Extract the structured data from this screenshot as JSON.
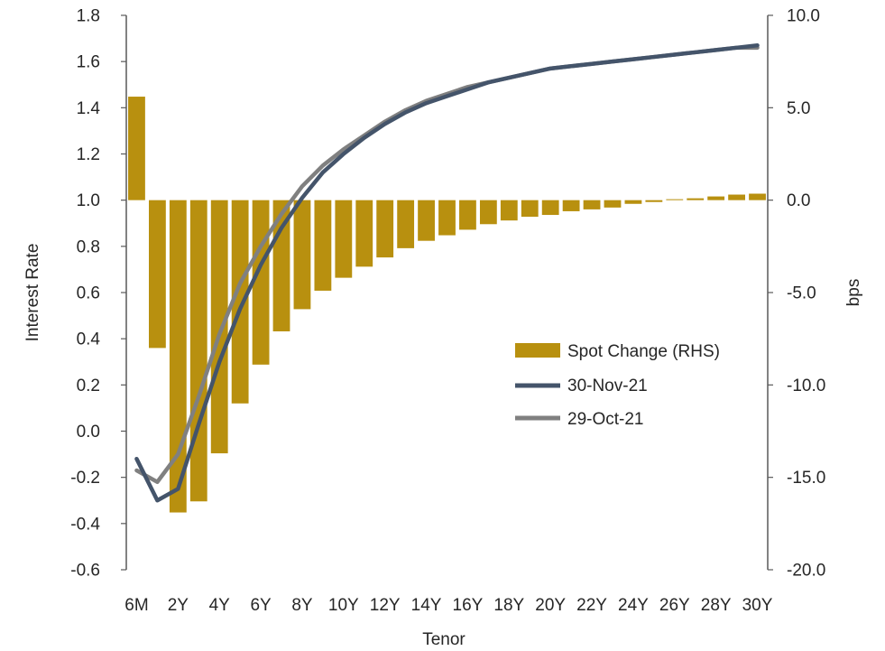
{
  "chart_data": {
    "type": "bar+line",
    "title": "",
    "xlabel": "Tenor",
    "ylabel_left": "Interest Rate",
    "ylabel_right": "bps",
    "ylim_left": [
      -0.6,
      1.8
    ],
    "ylim_right": [
      -20.0,
      10.0
    ],
    "yticks_left": [
      "1.8",
      "1.6",
      "1.4",
      "1.2",
      "1.0",
      "0.8",
      "0.6",
      "0.4",
      "0.2",
      "0.0",
      "-0.2",
      "-0.4",
      "-0.6"
    ],
    "yticks_right": [
      "10.0",
      "5.0",
      "0.0",
      "-5.0",
      "-10.0",
      "-15.0",
      "-20.0"
    ],
    "x_tick_labels": [
      "6M",
      "2Y",
      "4Y",
      "6Y",
      "8Y",
      "10Y",
      "12Y",
      "14Y",
      "16Y",
      "18Y",
      "20Y",
      "22Y",
      "24Y",
      "26Y",
      "28Y",
      "30Y"
    ],
    "categories": [
      "6M",
      "1Y",
      "2Y",
      "3Y",
      "4Y",
      "5Y",
      "6Y",
      "7Y",
      "8Y",
      "9Y",
      "10Y",
      "11Y",
      "12Y",
      "13Y",
      "14Y",
      "15Y",
      "16Y",
      "17Y",
      "18Y",
      "19Y",
      "20Y",
      "21Y",
      "22Y",
      "23Y",
      "24Y",
      "25Y",
      "26Y",
      "27Y",
      "28Y",
      "29Y",
      "30Y"
    ],
    "legend_position": "center-right",
    "grid": false,
    "series": [
      {
        "name": "Spot Change (RHS)",
        "type": "bar",
        "axis": "right",
        "color": "#B8900F",
        "values": [
          5.6,
          -8.0,
          -16.9,
          -16.3,
          -13.7,
          -11.0,
          -8.9,
          -7.1,
          -5.9,
          -4.9,
          -4.2,
          -3.6,
          -3.1,
          -2.6,
          -2.2,
          -1.9,
          -1.6,
          -1.3,
          -1.1,
          -0.9,
          -0.8,
          -0.6,
          -0.5,
          -0.4,
          -0.2,
          -0.1,
          0.05,
          0.1,
          0.2,
          0.3,
          0.35
        ]
      },
      {
        "name": "30-Nov-21",
        "type": "line",
        "axis": "left",
        "color": "#44546A",
        "values": [
          -0.12,
          -0.3,
          -0.25,
          0.03,
          0.3,
          0.53,
          0.72,
          0.88,
          1.01,
          1.12,
          1.2,
          1.27,
          1.33,
          1.38,
          1.42,
          1.45,
          1.48,
          1.51,
          1.53,
          1.55,
          1.57,
          1.58,
          1.59,
          1.6,
          1.61,
          1.62,
          1.63,
          1.64,
          1.65,
          1.66,
          1.67
        ]
      },
      {
        "name": "29-Oct-21",
        "type": "line",
        "axis": "left",
        "color": "#808080",
        "values": [
          -0.17,
          -0.22,
          -0.1,
          0.15,
          0.42,
          0.64,
          0.8,
          0.94,
          1.06,
          1.15,
          1.22,
          1.28,
          1.34,
          1.39,
          1.43,
          1.46,
          1.49,
          1.51,
          1.53,
          1.55,
          1.57,
          1.58,
          1.59,
          1.6,
          1.61,
          1.62,
          1.63,
          1.64,
          1.65,
          1.66,
          1.66
        ]
      }
    ]
  }
}
